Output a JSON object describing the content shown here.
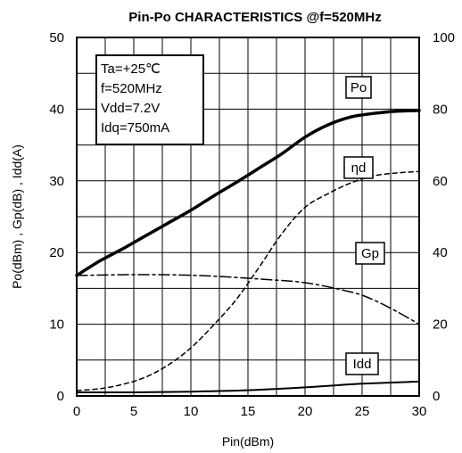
{
  "chart_data": {
    "type": "line",
    "title": "Pin-Po CHARACTERISTICS  @f=520MHz",
    "xlabel": "Pin(dBm)",
    "ylabel_left": "Po(dBm) , Gp(dB) , Idd(A)",
    "ylabel_right": "",
    "xlim": [
      0,
      30
    ],
    "ylim_left": [
      0,
      50
    ],
    "ylim_right": [
      0,
      100
    ],
    "x_ticks": [
      "0",
      "5",
      "10",
      "15",
      "20",
      "25",
      "30"
    ],
    "y_left_ticks": [
      "0",
      "10",
      "20",
      "30",
      "40",
      "50"
    ],
    "y_right_ticks": [
      "0",
      "20",
      "40",
      "60",
      "80",
      "100"
    ],
    "grid": true,
    "conditions": [
      "Ta=+25℃",
      "f=520MHz",
      "Vdd=7.2V",
      "Idq=750mA"
    ],
    "series": [
      {
        "name": "Po",
        "axis": "left",
        "style": "solid-thick",
        "x": [
          0,
          2,
          4,
          6,
          8,
          10,
          12,
          14,
          16,
          18,
          20,
          22,
          24,
          26,
          28,
          30
        ],
        "y": [
          16.8,
          18.8,
          20.5,
          22.3,
          24.1,
          25.9,
          27.9,
          29.8,
          31.8,
          33.8,
          36.1,
          37.8,
          38.9,
          39.4,
          39.7,
          39.8
        ]
      },
      {
        "name": "ηd",
        "axis": "right",
        "style": "dashed",
        "x": [
          0,
          2,
          4,
          6,
          8,
          10,
          12,
          14,
          16,
          18,
          20,
          22,
          24,
          26,
          28,
          30
        ],
        "y": [
          1.5,
          2,
          3.2,
          5.2,
          8.6,
          13.4,
          19.8,
          27,
          36,
          45.4,
          52.6,
          56.4,
          59.4,
          61.4,
          62.2,
          62.6
        ]
      },
      {
        "name": "Gp",
        "axis": "left",
        "style": "dash-dot",
        "x": [
          0,
          4,
          8,
          12,
          16,
          20,
          24,
          26,
          28,
          30
        ],
        "y": [
          16.8,
          16.9,
          16.9,
          16.7,
          16.3,
          15.8,
          14.5,
          13.4,
          11.8,
          10.0
        ]
      },
      {
        "name": "Idd",
        "axis": "left",
        "style": "solid",
        "x": [
          0,
          5,
          10,
          15,
          20,
          25,
          30
        ],
        "y": [
          0.5,
          0.5,
          0.6,
          0.8,
          1.2,
          1.7,
          2.0
        ]
      }
    ]
  }
}
